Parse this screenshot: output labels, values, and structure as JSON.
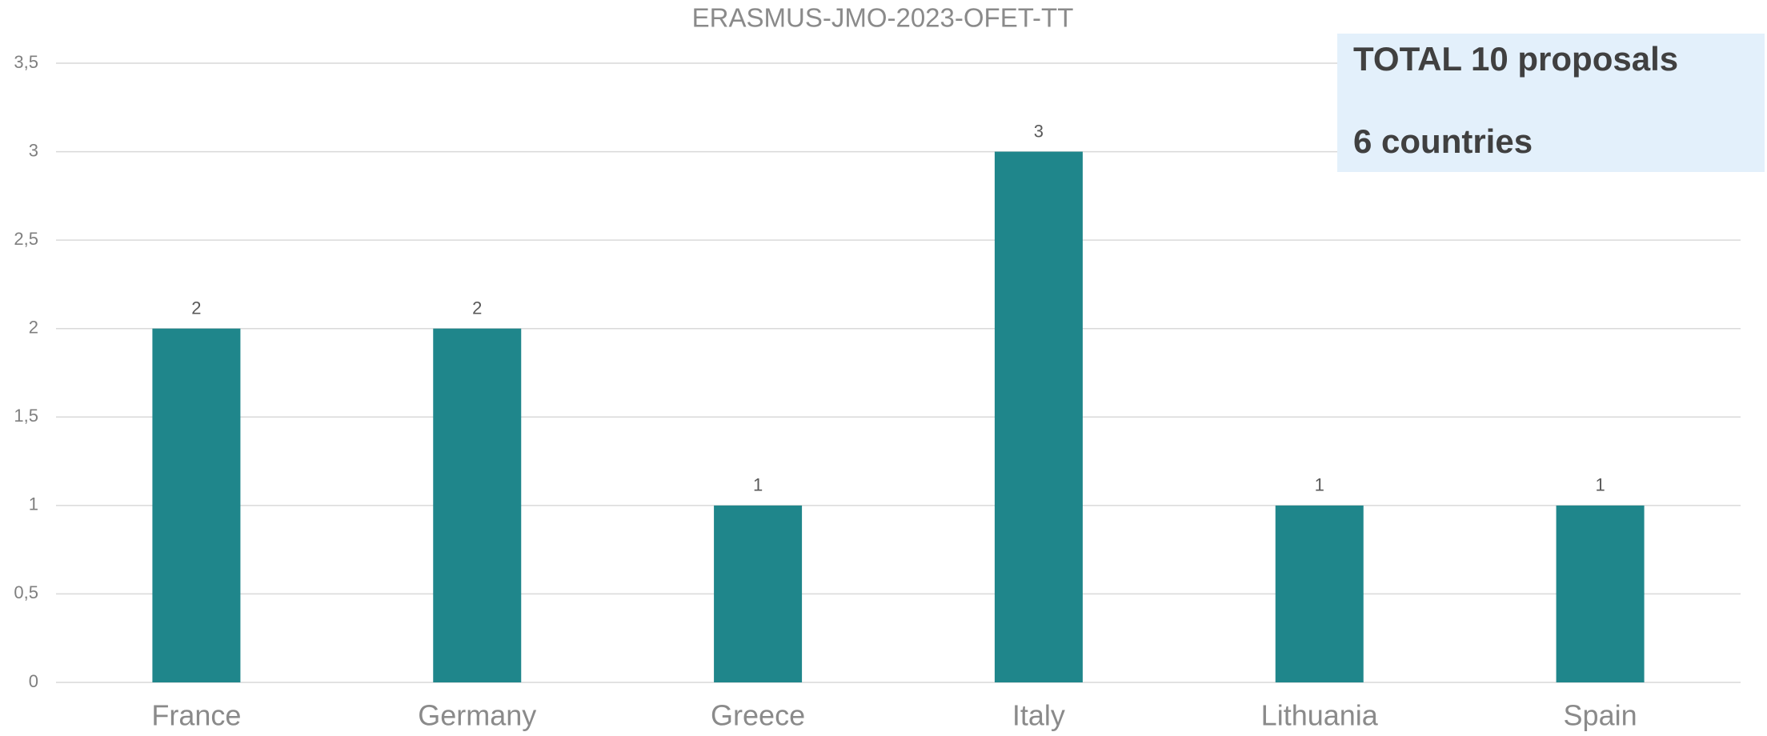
{
  "chart_data": {
    "type": "bar",
    "title": "ERASMUS-JMO-2023-OFET-TT",
    "categories": [
      "France",
      "Germany",
      "Greece",
      "Italy",
      "Lithuania",
      "Spain"
    ],
    "values": [
      2,
      2,
      1,
      3,
      1,
      1
    ],
    "color": "#1f868b",
    "ylim": [
      0,
      3.5
    ],
    "yticks": [
      0,
      {
        "value": 0.5,
        "label": "0,5"
      },
      1,
      {
        "value": 1.5,
        "label": "1,5"
      },
      2,
      {
        "value": 2.5,
        "label": "2,5"
      },
      3,
      {
        "value": 3.5,
        "label": "3,5"
      }
    ],
    "grid": true,
    "annotations": [
      "TOTAL 10 proposals",
      "6 countries"
    ]
  }
}
